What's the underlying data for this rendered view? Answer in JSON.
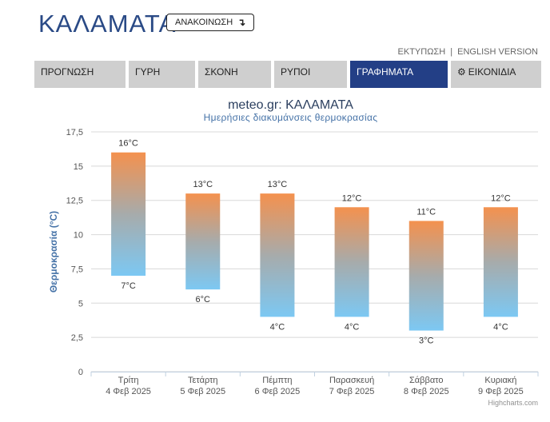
{
  "header": {
    "title": "ΚΑΛΑΜΑΤΑ",
    "announce_label": "ΑΝΑΚΟΙΝΩΣΗ",
    "announce_icon": "arrow-down-icon"
  },
  "top_links": {
    "print": "ΕΚΤΥΠΩΣΗ",
    "separator": "|",
    "english": "ENGLISH VERSION"
  },
  "tabs": [
    {
      "label": "ΠΡΟΓΝΩΣΗ",
      "active": false
    },
    {
      "label": "ΓΥΡΗ",
      "active": false
    },
    {
      "label": "ΣΚΟΝΗ",
      "active": false
    },
    {
      "label": "ΡΥΠΟΙ",
      "active": false
    },
    {
      "label": "ΓΡΑΦΗΜΑΤΑ",
      "active": true
    },
    {
      "label": "ΕΙΚΟΝΙΔΙΑ",
      "active": false,
      "icon": "gear-icon"
    }
  ],
  "colors": {
    "title": "#2a4a86",
    "active_tab": "#233f86",
    "tab": "#cfcfcf",
    "bar_top": "#f4914e",
    "bar_mid": "#a7abab",
    "bar_bottom": "#7cc8f3",
    "axis_label": "#4572a7"
  },
  "chart_data": {
    "type": "columnrange",
    "title": "meteo.gr: ΚΑΛΑΜΑΤΑ",
    "subtitle": "Ημερήσιες διακυμάνσεις θερμοκρασίας",
    "ylabel": "Θερμοκρασία (°C)",
    "xlabel": "",
    "ylim": [
      0,
      17.5
    ],
    "yticks": [
      "0",
      "2,5",
      "5",
      "7,5",
      "10",
      "12,5",
      "15",
      "17,5"
    ],
    "grid": true,
    "categories": [
      {
        "day": "Τρίτη",
        "date": "4 Φεβ 2025"
      },
      {
        "day": "Τετάρτη",
        "date": "5 Φεβ 2025"
      },
      {
        "day": "Πέμπτη",
        "date": "6 Φεβ 2025"
      },
      {
        "day": "Παρασκευή",
        "date": "7 Φεβ 2025"
      },
      {
        "day": "Σάββατο",
        "date": "8 Φεβ 2025"
      },
      {
        "day": "Κυριακή",
        "date": "9 Φεβ 2025"
      }
    ],
    "low": [
      7,
      6,
      4,
      4,
      3,
      4
    ],
    "high": [
      16,
      13,
      13,
      12,
      11,
      12
    ],
    "unit": "°C",
    "credit": "Highcharts.com"
  }
}
